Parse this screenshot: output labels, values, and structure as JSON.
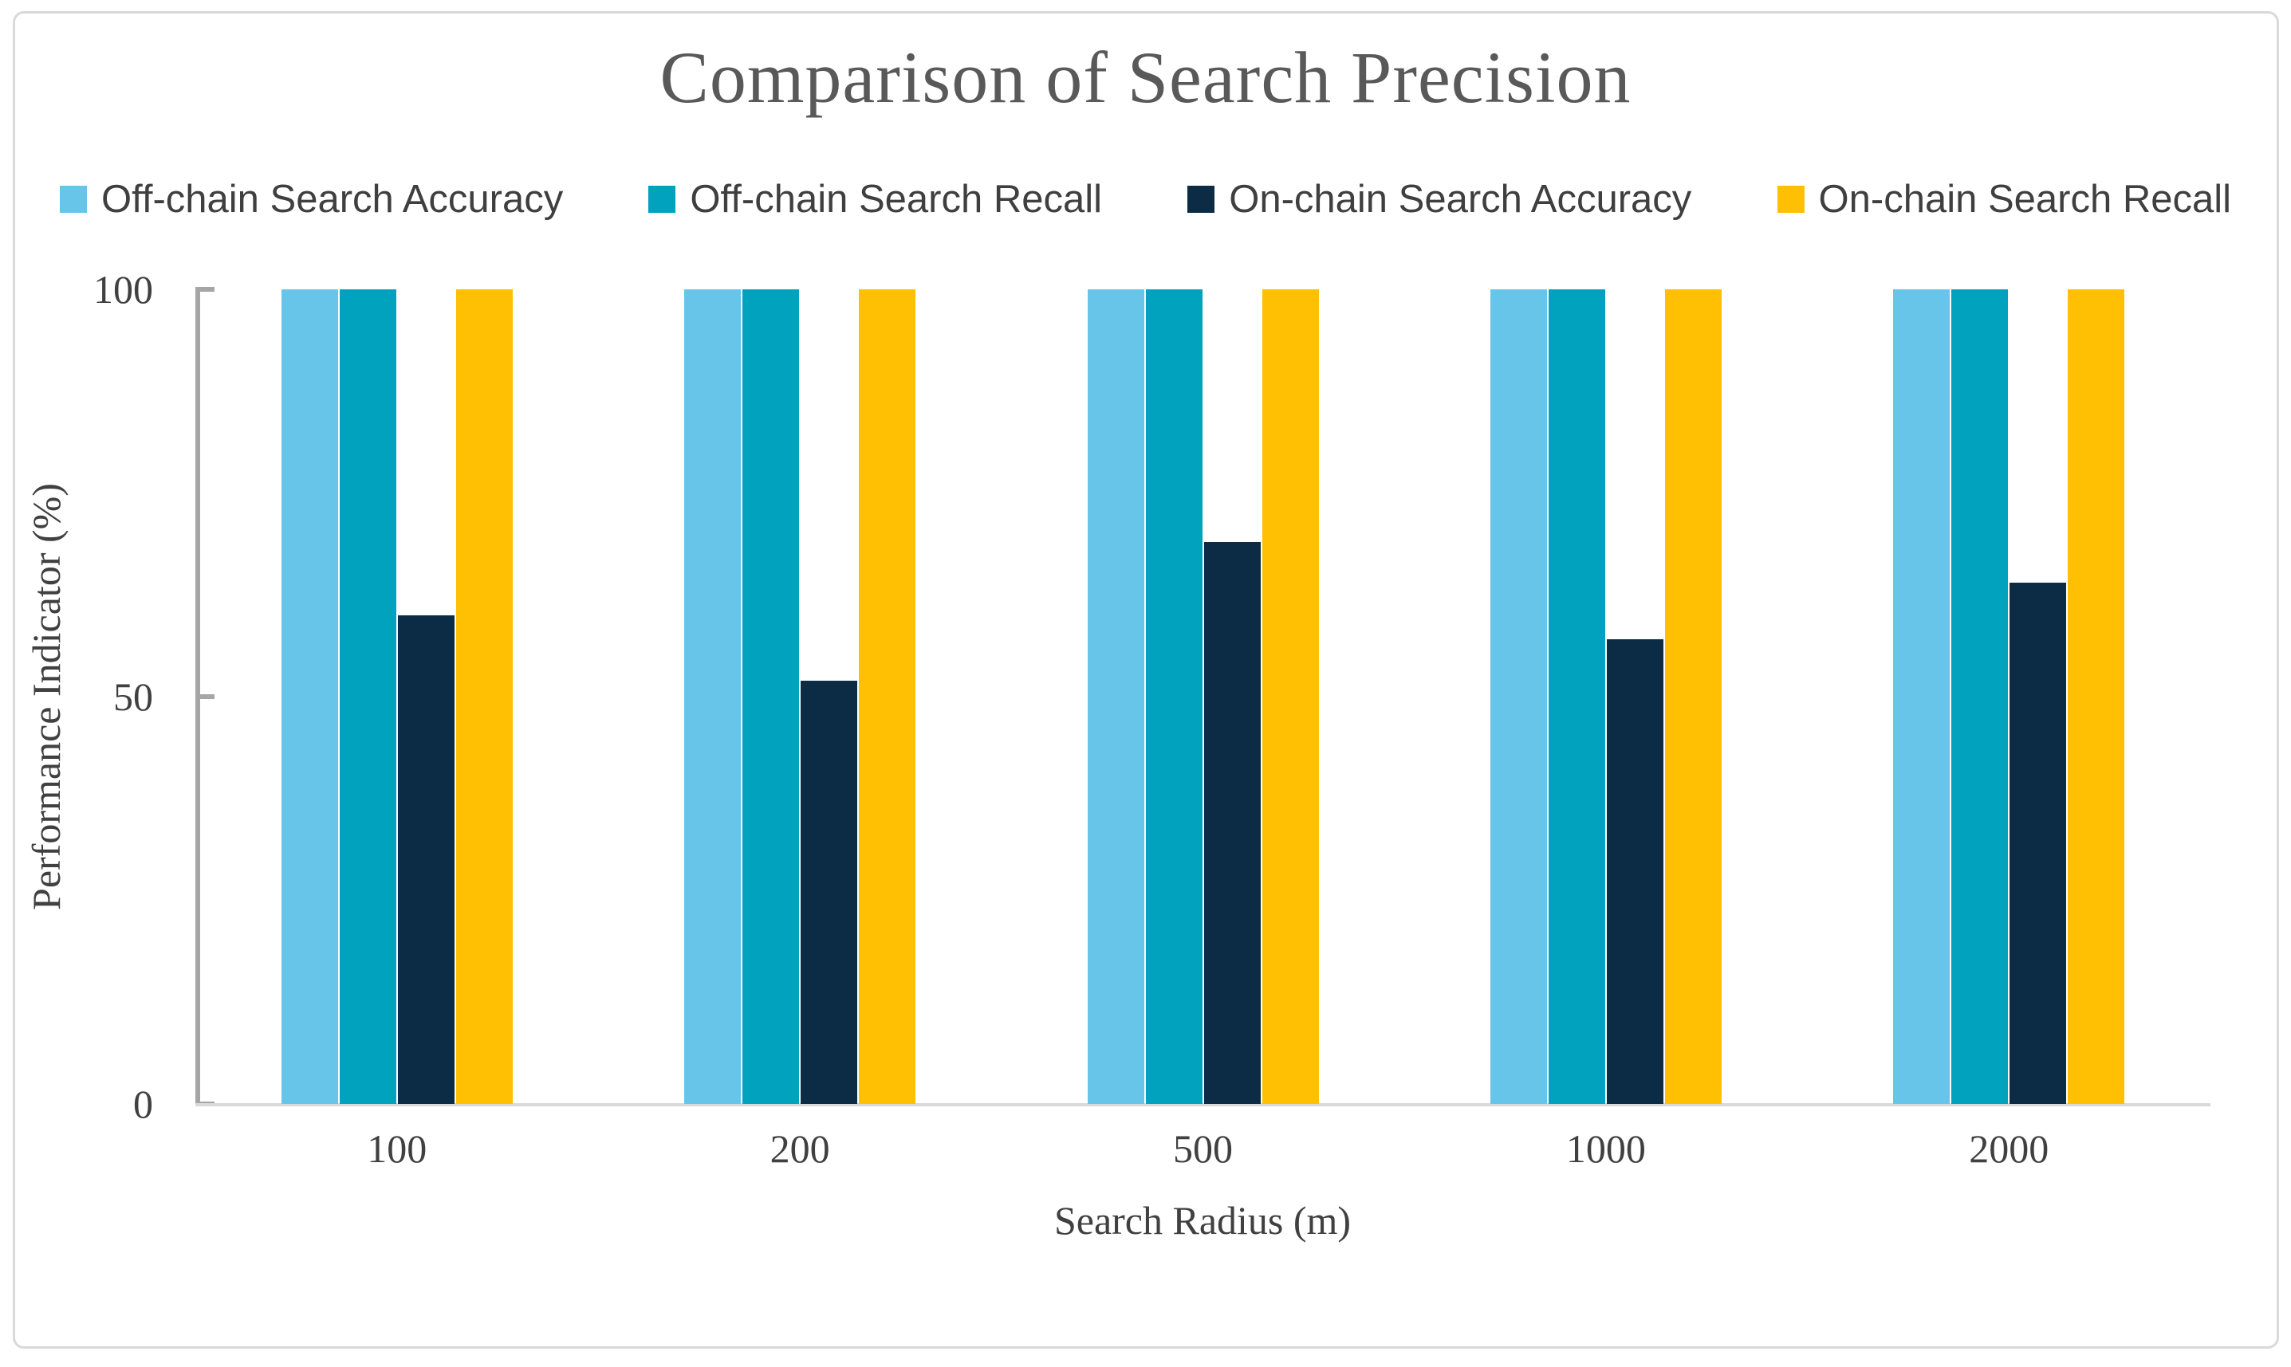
{
  "figure": {
    "title": "Comparison of Search Precision"
  },
  "chart_data": {
    "type": "bar",
    "title": "Comparison of Search Precision",
    "xlabel": "Search Radius (m)",
    "ylabel": "Performance Indicator (%)",
    "categories": [
      "100",
      "200",
      "500",
      "1000",
      "2000"
    ],
    "series": [
      {
        "name": "Off-chain Search Accuracy",
        "color": "#66c5e8",
        "values": [
          100,
          100,
          100,
          100,
          100
        ]
      },
      {
        "name": "Off-chain Search Recall",
        "color": "#00a2be",
        "values": [
          100,
          100,
          100,
          100,
          100
        ]
      },
      {
        "name": "On-chain Search Accuracy",
        "color": "#0c2c45",
        "values": [
          60,
          52,
          69,
          57,
          64
        ]
      },
      {
        "name": "On-chain Search Recall",
        "color": "#ffc003",
        "values": [
          100,
          100,
          100,
          100,
          100
        ]
      }
    ],
    "ylim": [
      0,
      100
    ],
    "yticks": [
      0,
      50,
      100
    ],
    "grid": false,
    "legend_position": "top"
  },
  "style_colors": {
    "axis_line": "#a6a6a6",
    "baseline": "#d9d9d9",
    "title_text": "#595959",
    "tick_text": "#404040",
    "card_border": "#d9d9d9"
  }
}
